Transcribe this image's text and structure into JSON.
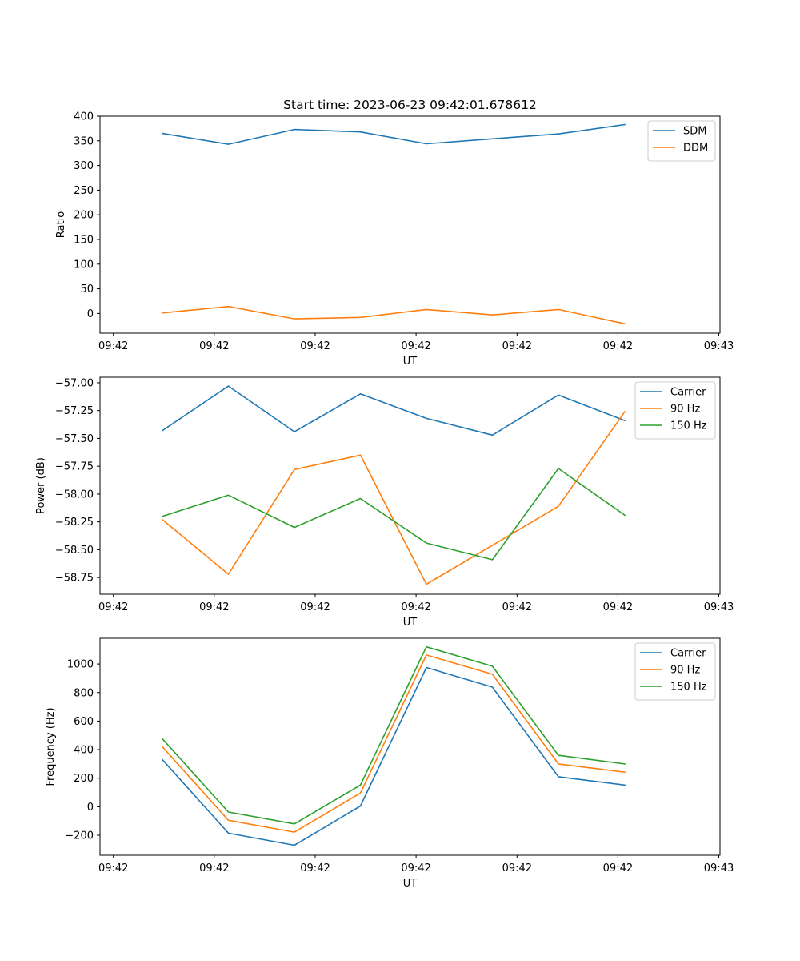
{
  "chart_data": [
    {
      "type": "line",
      "title": "Start time: 2023-06-23 09:42:01.678612",
      "xlabel": "UT",
      "ylabel": "Ratio",
      "x_tick_labels": [
        "09:42",
        "09:42",
        "09:42",
        "09:42",
        "09:42",
        "09:42",
        "09:43"
      ],
      "ylim": [
        -40,
        400
      ],
      "y_ticks": [
        0,
        50,
        100,
        150,
        200,
        250,
        300,
        350,
        400
      ],
      "legend_position": "top-right",
      "series": [
        {
          "name": "SDM",
          "color": "#1f77b4",
          "values": [
            365,
            343,
            373,
            368,
            344,
            354,
            364,
            383
          ]
        },
        {
          "name": "DDM",
          "color": "#ff7f0e",
          "values": [
            1,
            14,
            -11,
            -8,
            8,
            -3,
            8,
            -21
          ]
        }
      ]
    },
    {
      "type": "line",
      "title": "",
      "xlabel": "UT",
      "ylabel": "Power (dB)",
      "x_tick_labels": [
        "09:42",
        "09:42",
        "09:42",
        "09:42",
        "09:42",
        "09:42",
        "09:43"
      ],
      "ylim": [
        -58.9,
        -56.95
      ],
      "y_ticks": [
        -58.75,
        -58.5,
        -58.25,
        -58.0,
        -57.75,
        -57.5,
        -57.25,
        -57.0
      ],
      "y_tick_decimals": 2,
      "legend_position": "top-right",
      "series": [
        {
          "name": "Carrier",
          "color": "#1f77b4",
          "values": [
            -57.43,
            -57.03,
            -57.44,
            -57.1,
            -57.32,
            -57.47,
            -57.11,
            -57.34
          ]
        },
        {
          "name": "90 Hz",
          "color": "#ff7f0e",
          "values": [
            -58.23,
            -58.72,
            -57.78,
            -57.65,
            -58.81,
            -58.46,
            -58.11,
            -57.26
          ]
        },
        {
          "name": "150 Hz",
          "color": "#2ca02c",
          "values": [
            -58.2,
            -58.01,
            -58.3,
            -58.04,
            -58.44,
            -58.59,
            -57.77,
            -58.19
          ]
        }
      ]
    },
    {
      "type": "line",
      "title": "",
      "xlabel": "UT",
      "ylabel": "Frequency (Hz)",
      "x_tick_labels": [
        "09:42",
        "09:42",
        "09:42",
        "09:42",
        "09:42",
        "09:42",
        "09:43"
      ],
      "ylim": [
        -340,
        1180
      ],
      "y_ticks": [
        -200,
        0,
        200,
        400,
        600,
        800,
        1000
      ],
      "legend_position": "top-right",
      "series": [
        {
          "name": "Carrier",
          "color": "#1f77b4",
          "values": [
            330,
            -185,
            -270,
            5,
            975,
            838,
            210,
            152
          ]
        },
        {
          "name": "90 Hz",
          "color": "#ff7f0e",
          "values": [
            420,
            -95,
            -178,
            96,
            1063,
            928,
            300,
            242
          ]
        },
        {
          "name": "150 Hz",
          "color": "#2ca02c",
          "values": [
            476,
            -37,
            -120,
            152,
            1120,
            984,
            360,
            300
          ]
        }
      ]
    }
  ]
}
